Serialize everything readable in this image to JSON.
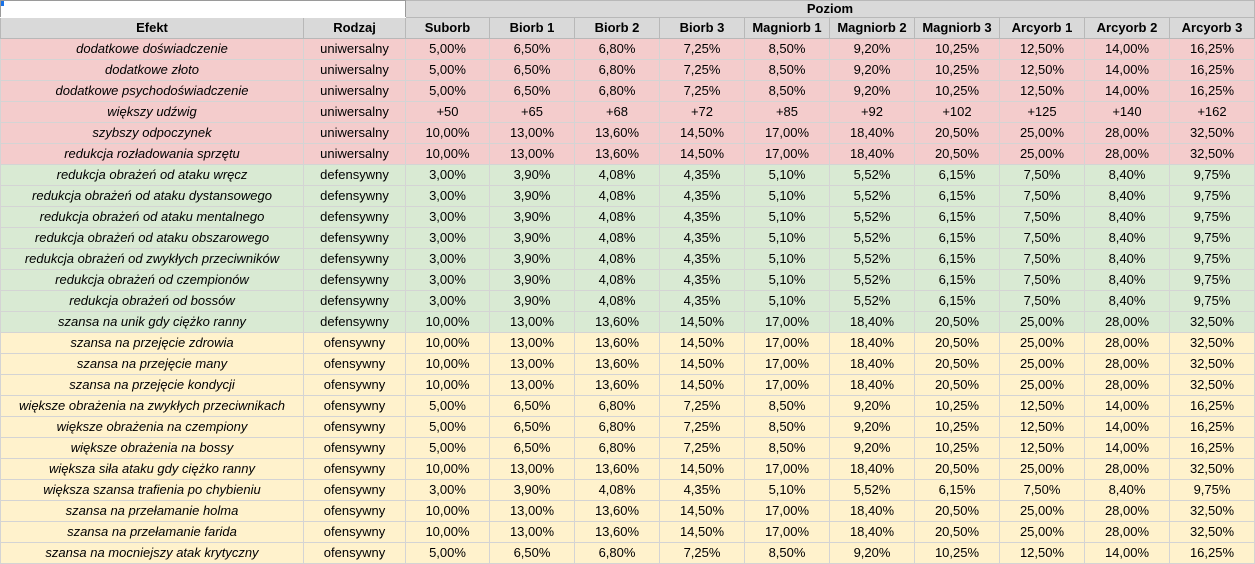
{
  "header": {
    "group_label": "Poziom",
    "effect_label": "Efekt",
    "type_label": "Rodzaj",
    "levels": [
      "Suborb",
      "Biorb 1",
      "Biorb 2",
      "Biorb 3",
      "Magniorb 1",
      "Magniorb 2",
      "Magniorb 3",
      "Arcyorb 1",
      "Arcyorb 2",
      "Arcyorb 3"
    ]
  },
  "colors": {
    "universal": "#f4cccc",
    "defensive": "#d9ead3",
    "offensive": "#fff2cc",
    "header": "#d9d9d9"
  },
  "rows": [
    {
      "effect": "dodatkowe doświadczenie",
      "type": "uniwersalny",
      "values": [
        "5,00%",
        "6,50%",
        "6,80%",
        "7,25%",
        "8,50%",
        "9,20%",
        "10,25%",
        "12,50%",
        "14,00%",
        "16,25%"
      ]
    },
    {
      "effect": "dodatkowe złoto",
      "type": "uniwersalny",
      "values": [
        "5,00%",
        "6,50%",
        "6,80%",
        "7,25%",
        "8,50%",
        "9,20%",
        "10,25%",
        "12,50%",
        "14,00%",
        "16,25%"
      ]
    },
    {
      "effect": "dodatkowe psychodoświadczenie",
      "type": "uniwersalny",
      "values": [
        "5,00%",
        "6,50%",
        "6,80%",
        "7,25%",
        "8,50%",
        "9,20%",
        "10,25%",
        "12,50%",
        "14,00%",
        "16,25%"
      ]
    },
    {
      "effect": "większy udźwig",
      "type": "uniwersalny",
      "values": [
        "+50",
        "+65",
        "+68",
        "+72",
        "+85",
        "+92",
        "+102",
        "+125",
        "+140",
        "+162"
      ]
    },
    {
      "effect": "szybszy odpoczynek",
      "type": "uniwersalny",
      "values": [
        "10,00%",
        "13,00%",
        "13,60%",
        "14,50%",
        "17,00%",
        "18,40%",
        "20,50%",
        "25,00%",
        "28,00%",
        "32,50%"
      ]
    },
    {
      "effect": "redukcja rozładowania sprzętu",
      "type": "uniwersalny",
      "values": [
        "10,00%",
        "13,00%",
        "13,60%",
        "14,50%",
        "17,00%",
        "18,40%",
        "20,50%",
        "25,00%",
        "28,00%",
        "32,50%"
      ]
    },
    {
      "effect": "redukcja obrażeń od ataku wręcz",
      "type": "defensywny",
      "values": [
        "3,00%",
        "3,90%",
        "4,08%",
        "4,35%",
        "5,10%",
        "5,52%",
        "6,15%",
        "7,50%",
        "8,40%",
        "9,75%"
      ]
    },
    {
      "effect": "redukcja obrażeń od ataku dystansowego",
      "type": "defensywny",
      "values": [
        "3,00%",
        "3,90%",
        "4,08%",
        "4,35%",
        "5,10%",
        "5,52%",
        "6,15%",
        "7,50%",
        "8,40%",
        "9,75%"
      ]
    },
    {
      "effect": "redukcja obrażeń od ataku mentalnego",
      "type": "defensywny",
      "values": [
        "3,00%",
        "3,90%",
        "4,08%",
        "4,35%",
        "5,10%",
        "5,52%",
        "6,15%",
        "7,50%",
        "8,40%",
        "9,75%"
      ]
    },
    {
      "effect": "redukcja obrażeń od ataku obszarowego",
      "type": "defensywny",
      "values": [
        "3,00%",
        "3,90%",
        "4,08%",
        "4,35%",
        "5,10%",
        "5,52%",
        "6,15%",
        "7,50%",
        "8,40%",
        "9,75%"
      ]
    },
    {
      "effect": "redukcja obrażeń od zwykłych przeciwników",
      "type": "defensywny",
      "values": [
        "3,00%",
        "3,90%",
        "4,08%",
        "4,35%",
        "5,10%",
        "5,52%",
        "6,15%",
        "7,50%",
        "8,40%",
        "9,75%"
      ]
    },
    {
      "effect": "redukcja obrażeń od czempionów",
      "type": "defensywny",
      "values": [
        "3,00%",
        "3,90%",
        "4,08%",
        "4,35%",
        "5,10%",
        "5,52%",
        "6,15%",
        "7,50%",
        "8,40%",
        "9,75%"
      ]
    },
    {
      "effect": "redukcja obrażeń od bossów",
      "type": "defensywny",
      "values": [
        "3,00%",
        "3,90%",
        "4,08%",
        "4,35%",
        "5,10%",
        "5,52%",
        "6,15%",
        "7,50%",
        "8,40%",
        "9,75%"
      ]
    },
    {
      "effect": "szansa na unik gdy ciężko ranny",
      "type": "defensywny",
      "values": [
        "10,00%",
        "13,00%",
        "13,60%",
        "14,50%",
        "17,00%",
        "18,40%",
        "20,50%",
        "25,00%",
        "28,00%",
        "32,50%"
      ]
    },
    {
      "effect": "szansa na przejęcie zdrowia",
      "type": "ofensywny",
      "values": [
        "10,00%",
        "13,00%",
        "13,60%",
        "14,50%",
        "17,00%",
        "18,40%",
        "20,50%",
        "25,00%",
        "28,00%",
        "32,50%"
      ]
    },
    {
      "effect": "szansa na przejęcie many",
      "type": "ofensywny",
      "values": [
        "10,00%",
        "13,00%",
        "13,60%",
        "14,50%",
        "17,00%",
        "18,40%",
        "20,50%",
        "25,00%",
        "28,00%",
        "32,50%"
      ]
    },
    {
      "effect": "szansa na przejęcie kondycji",
      "type": "ofensywny",
      "values": [
        "10,00%",
        "13,00%",
        "13,60%",
        "14,50%",
        "17,00%",
        "18,40%",
        "20,50%",
        "25,00%",
        "28,00%",
        "32,50%"
      ]
    },
    {
      "effect": "większe obrażenia na zwykłych przeciwnikach",
      "type": "ofensywny",
      "values": [
        "5,00%",
        "6,50%",
        "6,80%",
        "7,25%",
        "8,50%",
        "9,20%",
        "10,25%",
        "12,50%",
        "14,00%",
        "16,25%"
      ]
    },
    {
      "effect": "większe obrażenia na czempiony",
      "type": "ofensywny",
      "values": [
        "5,00%",
        "6,50%",
        "6,80%",
        "7,25%",
        "8,50%",
        "9,20%",
        "10,25%",
        "12,50%",
        "14,00%",
        "16,25%"
      ]
    },
    {
      "effect": "większe obrażenia na bossy",
      "type": "ofensywny",
      "values": [
        "5,00%",
        "6,50%",
        "6,80%",
        "7,25%",
        "8,50%",
        "9,20%",
        "10,25%",
        "12,50%",
        "14,00%",
        "16,25%"
      ]
    },
    {
      "effect": "większa siła ataku gdy ciężko ranny",
      "type": "ofensywny",
      "values": [
        "10,00%",
        "13,00%",
        "13,60%",
        "14,50%",
        "17,00%",
        "18,40%",
        "20,50%",
        "25,00%",
        "28,00%",
        "32,50%"
      ]
    },
    {
      "effect": "większa szansa trafienia po chybieniu",
      "type": "ofensywny",
      "values": [
        "3,00%",
        "3,90%",
        "4,08%",
        "4,35%",
        "5,10%",
        "5,52%",
        "6,15%",
        "7,50%",
        "8,40%",
        "9,75%"
      ]
    },
    {
      "effect": "szansa na przełamanie holma",
      "type": "ofensywny",
      "values": [
        "10,00%",
        "13,00%",
        "13,60%",
        "14,50%",
        "17,00%",
        "18,40%",
        "20,50%",
        "25,00%",
        "28,00%",
        "32,50%"
      ]
    },
    {
      "effect": "szansa na przełamanie farida",
      "type": "ofensywny",
      "values": [
        "10,00%",
        "13,00%",
        "13,60%",
        "14,50%",
        "17,00%",
        "18,40%",
        "20,50%",
        "25,00%",
        "28,00%",
        "32,50%"
      ]
    },
    {
      "effect": "szansa na mocniejszy atak krytyczny",
      "type": "ofensywny",
      "values": [
        "5,00%",
        "6,50%",
        "6,80%",
        "7,25%",
        "8,50%",
        "9,20%",
        "10,25%",
        "12,50%",
        "14,00%",
        "16,25%"
      ]
    }
  ]
}
